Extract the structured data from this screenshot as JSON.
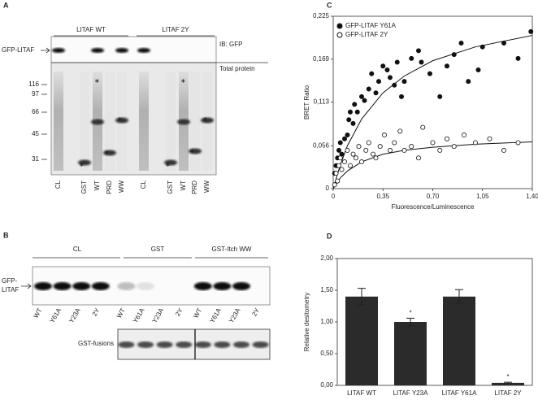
{
  "panel_a": {
    "label": "A",
    "groups": [
      "LITAF WT",
      "LITAF 2Y"
    ],
    "blot_label": "GFP-LITAF",
    "ib": "IB: GFP",
    "total": "Total protein",
    "markers": [
      "116",
      "97",
      "66",
      "45",
      "31"
    ],
    "lanes": [
      "CL",
      "GST",
      "WT",
      "PRD",
      "WW",
      "CL",
      "GST",
      "WT",
      "PRD",
      "WW"
    ]
  },
  "panel_b": {
    "label": "B",
    "groups": [
      "CL",
      "GST",
      "GST-Itch WW"
    ],
    "blot_label_lines": [
      "GFP-",
      "LITAF"
    ],
    "lanes": [
      "WT",
      "Y61A",
      "Y23A",
      "2Y",
      "WT",
      "Y61A",
      "Y23A",
      "2Y",
      "WT",
      "Y61A",
      "Y23A",
      "2Y"
    ],
    "fusion_label": "GST-fusions"
  },
  "chart_data": [
    {
      "type": "scatter",
      "label": "C",
      "xlabel": "Fluorescence/Luminescence",
      "ylabel": "BRET Ratio",
      "xlim": [
        0,
        1.4
      ],
      "ylim": [
        0,
        0.225
      ],
      "xticks": [
        0,
        {
          "value": 0.35,
          "label": "0,35"
        },
        {
          "value": 0.7,
          "label": "0,70"
        },
        {
          "value": 1.05,
          "label": "1,05"
        },
        {
          "value": 1.4,
          "label": "1,40"
        }
      ],
      "yticks": [
        0,
        {
          "value": 0.056,
          "label": "0,056"
        },
        {
          "value": 0.113,
          "label": "0,113"
        },
        {
          "value": 0.169,
          "label": "0,169"
        },
        {
          "value": 0.225,
          "label": "0,225"
        }
      ],
      "legend": "top-left",
      "series": [
        {
          "name": "GFP-LITAF Y61A",
          "color": "#111111",
          "marker": "filled",
          "x": [
            0.01,
            0.02,
            0.03,
            0.04,
            0.05,
            0.06,
            0.08,
            0.1,
            0.11,
            0.12,
            0.14,
            0.15,
            0.17,
            0.2,
            0.22,
            0.25,
            0.27,
            0.3,
            0.32,
            0.35,
            0.38,
            0.4,
            0.43,
            0.45,
            0.48,
            0.5,
            0.55,
            0.6,
            0.62,
            0.68,
            0.75,
            0.8,
            0.85,
            0.9,
            0.95,
            1.02,
            1.05,
            1.2,
            1.3,
            1.39
          ],
          "values": [
            0.02,
            0.03,
            0.04,
            0.05,
            0.06,
            0.045,
            0.065,
            0.07,
            0.09,
            0.1,
            0.085,
            0.11,
            0.1,
            0.12,
            0.115,
            0.13,
            0.15,
            0.125,
            0.14,
            0.16,
            0.155,
            0.145,
            0.135,
            0.165,
            0.12,
            0.14,
            0.17,
            0.18,
            0.165,
            0.15,
            0.12,
            0.16,
            0.175,
            0.19,
            0.14,
            0.155,
            0.185,
            0.19,
            0.17,
            0.205
          ],
          "fit_x": [
            0,
            0.05,
            0.1,
            0.2,
            0.35,
            0.5,
            0.7,
            1.0,
            1.4
          ],
          "fit_values": [
            0,
            0.031,
            0.056,
            0.091,
            0.125,
            0.147,
            0.167,
            0.185,
            0.2
          ]
        },
        {
          "name": "GFP-LITAF 2Y",
          "color": "#111111",
          "marker": "open",
          "x": [
            0.01,
            0.02,
            0.03,
            0.04,
            0.05,
            0.06,
            0.08,
            0.1,
            0.12,
            0.14,
            0.16,
            0.18,
            0.2,
            0.23,
            0.25,
            0.28,
            0.3,
            0.33,
            0.36,
            0.4,
            0.43,
            0.47,
            0.5,
            0.55,
            0.6,
            0.63,
            0.7,
            0.75,
            0.8,
            0.85,
            0.92,
            1.0,
            1.1,
            1.2,
            1.3
          ],
          "values": [
            0.005,
            0.02,
            0.01,
            0.03,
            0.04,
            0.025,
            0.035,
            0.05,
            0.03,
            0.045,
            0.04,
            0.055,
            0.035,
            0.05,
            0.06,
            0.045,
            0.04,
            0.055,
            0.07,
            0.05,
            0.06,
            0.075,
            0.05,
            0.055,
            0.04,
            0.08,
            0.06,
            0.05,
            0.065,
            0.055,
            0.07,
            0.06,
            0.065,
            0.05,
            0.06
          ],
          "fit_x": [
            0,
            0.05,
            0.1,
            0.2,
            0.35,
            0.5,
            0.7,
            1.0,
            1.4
          ],
          "fit_values": [
            0,
            0.014,
            0.023,
            0.035,
            0.045,
            0.05,
            0.054,
            0.058,
            0.061
          ]
        }
      ]
    },
    {
      "type": "bar",
      "label": "D",
      "ylabel": "Relative desitometry",
      "categories": [
        "LITAF WT",
        "LITAF Y23A",
        "LITAF Y61A",
        "LITAF 2Y"
      ],
      "values": [
        1.4,
        1.0,
        1.4,
        0.04
      ],
      "errors": [
        0.13,
        0.06,
        0.11,
        0.01
      ],
      "significance": [
        null,
        "*",
        null,
        "*"
      ],
      "color": "#2b2b2b",
      "ylim": [
        0,
        2
      ],
      "yticks": [
        {
          "value": 0,
          "label": "0,00"
        },
        {
          "value": 0.5,
          "label": "0,50"
        },
        {
          "value": 1,
          "label": "1,00"
        },
        {
          "value": 1.5,
          "label": "1,50"
        },
        {
          "value": 2,
          "label": "2,00"
        }
      ]
    }
  ]
}
